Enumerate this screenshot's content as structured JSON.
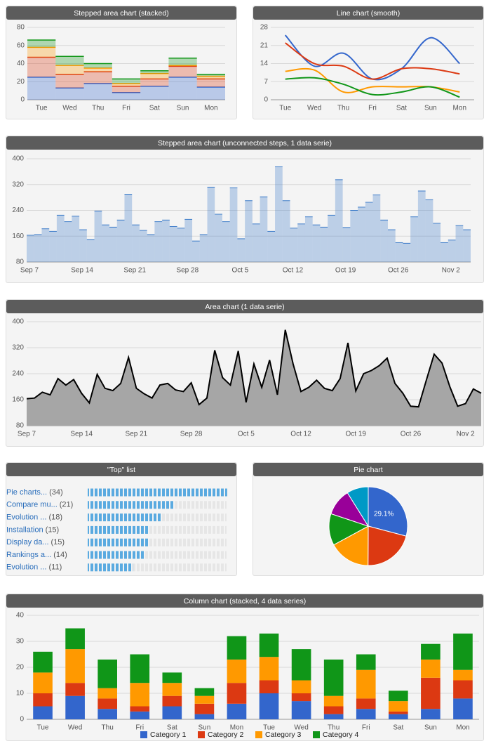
{
  "chart_data": [
    {
      "type": "stepped-area",
      "stacked": true,
      "title": "Stepped area chart (stacked)",
      "categories": [
        "Tue",
        "Wed",
        "Thu",
        "Fri",
        "Sat",
        "Sun",
        "Mon"
      ],
      "series": [
        {
          "color": "#3366cc",
          "values": [
            25,
            13,
            18,
            8,
            15,
            25,
            14
          ]
        },
        {
          "color": "#dc3912",
          "values": [
            22,
            15,
            13,
            7,
            8,
            12,
            9
          ]
        },
        {
          "color": "#ff9900",
          "values": [
            11,
            10,
            4,
            3,
            6,
            1,
            3
          ]
        },
        {
          "color": "#109618",
          "values": [
            8,
            10,
            5,
            5,
            3,
            8,
            2
          ]
        }
      ],
      "ylim": [
        0,
        80
      ],
      "yticks": [
        0,
        20,
        40,
        60,
        80
      ],
      "grid": true
    },
    {
      "type": "line",
      "smooth": true,
      "title": "Line chart (smooth)",
      "categories": [
        "Tue",
        "Wed",
        "Thu",
        "Fri",
        "Sat",
        "Sun",
        "Mon"
      ],
      "series": [
        {
          "color": "#3366cc",
          "values": [
            25,
            13,
            18,
            8,
            12,
            24,
            14
          ]
        },
        {
          "color": "#dc3912",
          "values": [
            22,
            14,
            13,
            8,
            12,
            12,
            10
          ]
        },
        {
          "color": "#ff9900",
          "values": [
            11,
            11.5,
            3,
            5,
            5,
            5,
            3
          ]
        },
        {
          "color": "#109618",
          "values": [
            8,
            8.5,
            6,
            2,
            3,
            5,
            1
          ]
        }
      ],
      "ylim": [
        0,
        28
      ],
      "yticks": [
        0,
        7,
        14,
        21,
        28
      ],
      "grid": true
    },
    {
      "type": "stepped-area",
      "stacked": false,
      "title": "Stepped area chart (unconnected steps, 1 data serie)",
      "categories": [
        "Sep 7",
        null,
        null,
        null,
        null,
        null,
        null,
        "Sep 14",
        null,
        null,
        null,
        null,
        null,
        null,
        "Sep 21",
        null,
        null,
        null,
        null,
        null,
        null,
        "Sep 28",
        null,
        null,
        null,
        null,
        null,
        null,
        "Oct 5",
        null,
        null,
        null,
        null,
        null,
        null,
        "Oct 12",
        null,
        null,
        null,
        null,
        null,
        null,
        "Oct 19",
        null,
        null,
        null,
        null,
        null,
        null,
        "Oct 26",
        null,
        null,
        null,
        null,
        null,
        null,
        "Nov 2",
        null,
        null
      ],
      "values": [
        163,
        165,
        183,
        175,
        225,
        205,
        222,
        180,
        150,
        238,
        195,
        188,
        210,
        290,
        195,
        178,
        165,
        205,
        210,
        190,
        185,
        212,
        145,
        165,
        312,
        228,
        205,
        310,
        152,
        270,
        198,
        282,
        175,
        375,
        270,
        185,
        198,
        220,
        195,
        188,
        225,
        335,
        187,
        240,
        250,
        265,
        288,
        210,
        180,
        140,
        138,
        220,
        300,
        273,
        200,
        140,
        148,
        193,
        180
      ],
      "color": "#3d7cc9",
      "ylim": [
        80,
        400
      ],
      "yticks": [
        80,
        160,
        240,
        320,
        400
      ],
      "grid": true
    },
    {
      "type": "area",
      "title": "Area chart (1 data serie)",
      "categories": [
        "Sep 7",
        null,
        null,
        null,
        null,
        null,
        null,
        "Sep 14",
        null,
        null,
        null,
        null,
        null,
        null,
        "Sep 21",
        null,
        null,
        null,
        null,
        null,
        null,
        "Sep 28",
        null,
        null,
        null,
        null,
        null,
        null,
        "Oct 5",
        null,
        null,
        null,
        null,
        null,
        null,
        "Oct 12",
        null,
        null,
        null,
        null,
        null,
        null,
        "Oct 19",
        null,
        null,
        null,
        null,
        null,
        null,
        "Oct 26",
        null,
        null,
        null,
        null,
        null,
        null,
        "Nov 2",
        null,
        null
      ],
      "values": [
        163,
        165,
        183,
        175,
        225,
        205,
        222,
        180,
        150,
        238,
        195,
        188,
        210,
        290,
        195,
        178,
        165,
        205,
        210,
        190,
        185,
        212,
        145,
        165,
        312,
        228,
        205,
        310,
        152,
        270,
        198,
        282,
        175,
        375,
        270,
        185,
        198,
        220,
        195,
        188,
        225,
        335,
        187,
        240,
        250,
        265,
        288,
        210,
        180,
        140,
        138,
        220,
        300,
        273,
        200,
        140,
        148,
        193,
        180
      ],
      "color": "#000000",
      "ylim": [
        80,
        400
      ],
      "yticks": [
        80,
        160,
        240,
        320,
        400
      ],
      "grid": true
    },
    {
      "type": "top-list",
      "title": "\"Top\" list",
      "categories": [
        "Pie charts...",
        "Compare mu...",
        "Evolution ...",
        "Installation",
        "Display da...",
        "Rankings a...",
        "Evolution ..."
      ],
      "values": [
        34,
        21,
        18,
        15,
        15,
        14,
        11
      ],
      "value_labels": [
        "(34)",
        "(21)",
        "(18)",
        "(15)",
        "(15)",
        "(14)",
        "(11)"
      ],
      "color": "#5aaae0"
    },
    {
      "type": "pie",
      "title": "Pie chart",
      "values": [
        29.1,
        21,
        17,
        13,
        11,
        8.9
      ],
      "value_labels": [
        "29.1%",
        null,
        null,
        null,
        null,
        null
      ],
      "colors": [
        "#3366cc",
        "#dc3912",
        "#ff9900",
        "#109618",
        "#990099",
        "#0099c6"
      ]
    },
    {
      "type": "column",
      "stacked": true,
      "title": "Column chart (stacked, 4 data series)",
      "categories": [
        "Tue",
        "Wed",
        "Thu",
        "Fri",
        "Sat",
        "Sun",
        "Mon",
        "Tue",
        "Wed",
        "Thu",
        "Fri",
        "Sat",
        "Sun",
        "Mon"
      ],
      "series": [
        {
          "name": "Category 1",
          "color": "#3366cc",
          "values": [
            5,
            9,
            4,
            3,
            5,
            2,
            6,
            10,
            7,
            2,
            4,
            2,
            4,
            8
          ]
        },
        {
          "name": "Category 2",
          "color": "#dc3912",
          "values": [
            5,
            5,
            4,
            2,
            4,
            4,
            8,
            5,
            3,
            3,
            4,
            1,
            12,
            7
          ]
        },
        {
          "name": "Category 3",
          "color": "#ff9900",
          "values": [
            8,
            13,
            4,
            9,
            5,
            3,
            9,
            9,
            5,
            4,
            11,
            4,
            7,
            4
          ]
        },
        {
          "name": "Category 4",
          "color": "#109618",
          "values": [
            8,
            8,
            11,
            11,
            4,
            3,
            9,
            9,
            12,
            14,
            6,
            4,
            6,
            14
          ]
        }
      ],
      "ylim": [
        0,
        40
      ],
      "yticks": [
        0,
        10,
        20,
        30,
        40
      ],
      "grid": true,
      "legend": "bottom"
    }
  ]
}
